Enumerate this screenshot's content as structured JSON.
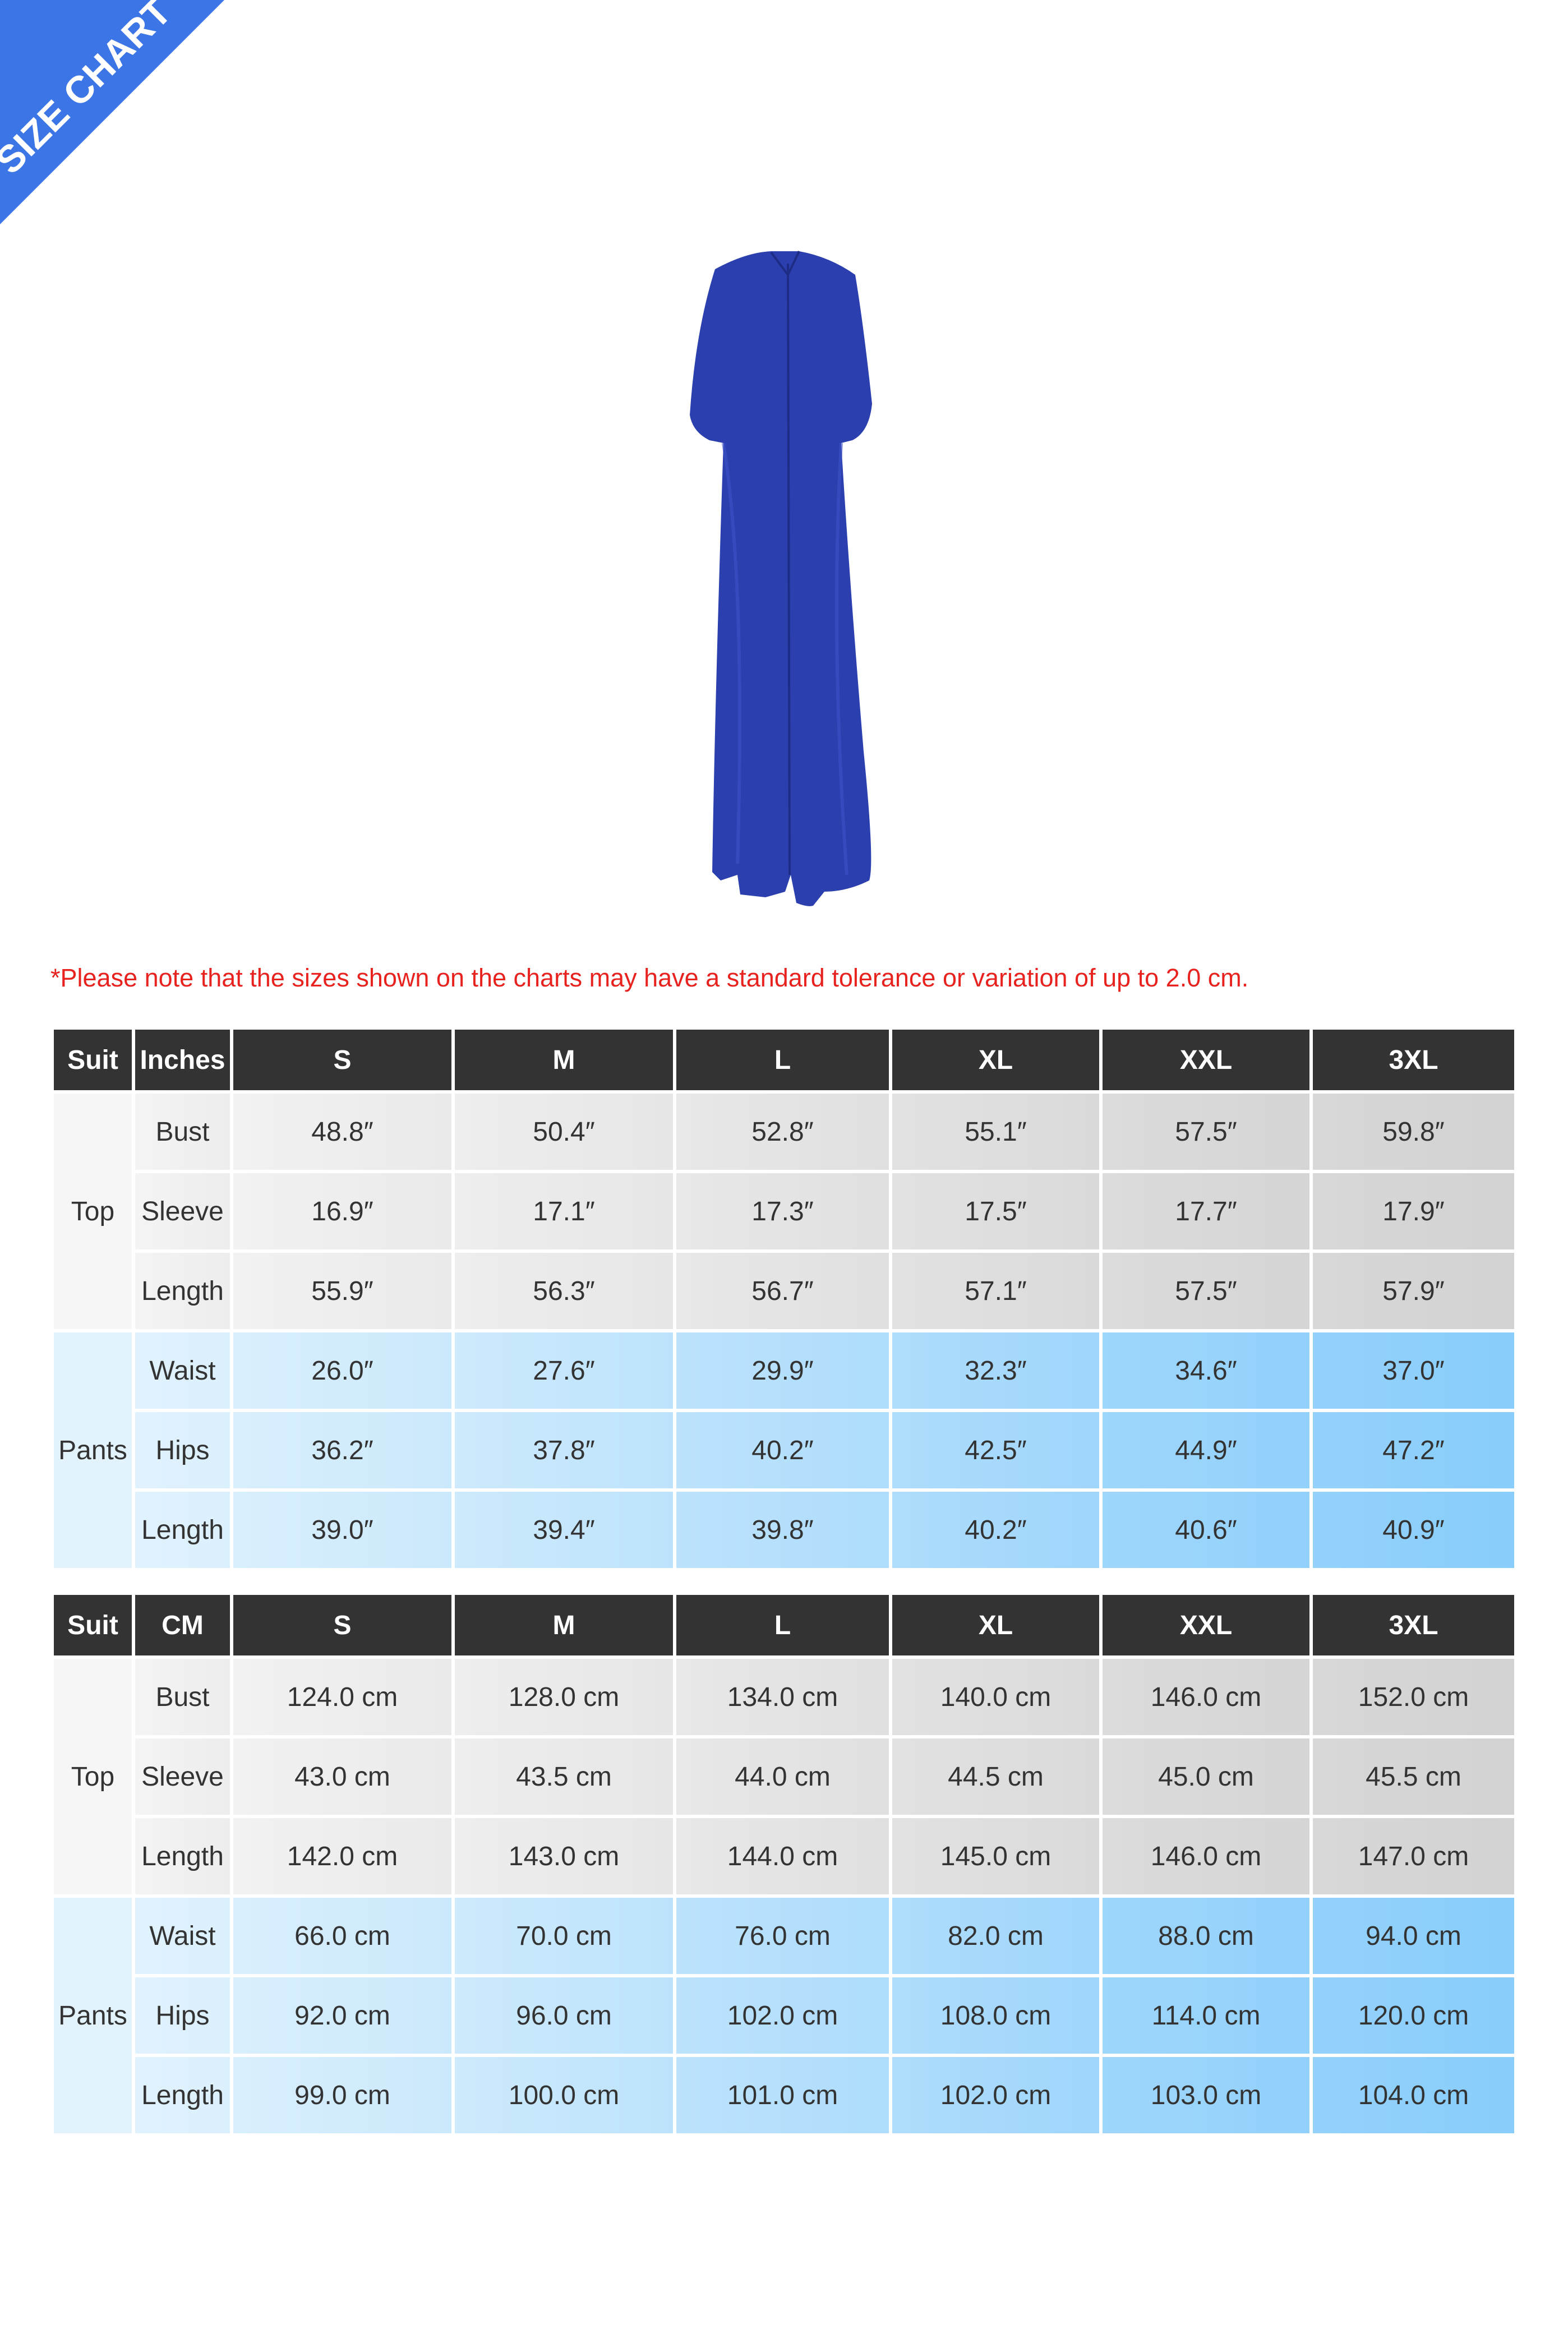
{
  "banner": {
    "label": "SIZE CHART",
    "color": "#3b75e6"
  },
  "product": {
    "color": "#2b3fae"
  },
  "note": "*Please note that the sizes shown on the charts may have a standard tolerance or variation of up to 2.0 cm.",
  "tables": [
    {
      "headers": [
        "Suit",
        "Inches",
        "S",
        "M",
        "L",
        "XL",
        "XXL",
        "3XL"
      ],
      "groups": [
        {
          "name": "Top",
          "rows": [
            {
              "label": "Bust",
              "values": [
                "48.8″",
                "50.4″",
                "52.8″",
                "55.1″",
                "57.5″",
                "59.8″"
              ]
            },
            {
              "label": "Sleeve",
              "values": [
                "16.9″",
                "17.1″",
                "17.3″",
                "17.5″",
                "17.7″",
                "17.9″"
              ]
            },
            {
              "label": "Length",
              "values": [
                "55.9″",
                "56.3″",
                "56.7″",
                "57.1″",
                "57.5″",
                "57.9″"
              ]
            }
          ]
        },
        {
          "name": "Pants",
          "rows": [
            {
              "label": "Waist",
              "values": [
                "26.0″",
                "27.6″",
                "29.9″",
                "32.3″",
                "34.6″",
                "37.0″"
              ]
            },
            {
              "label": "Hips",
              "values": [
                "36.2″",
                "37.8″",
                "40.2″",
                "42.5″",
                "44.9″",
                "47.2″"
              ]
            },
            {
              "label": "Length",
              "values": [
                "39.0″",
                "39.4″",
                "39.8″",
                "40.2″",
                "40.6″",
                "40.9″"
              ]
            }
          ]
        }
      ]
    },
    {
      "headers": [
        "Suit",
        "CM",
        "S",
        "M",
        "L",
        "XL",
        "XXL",
        "3XL"
      ],
      "groups": [
        {
          "name": "Top",
          "rows": [
            {
              "label": "Bust",
              "values": [
                "124.0 cm",
                "128.0 cm",
                "134.0 cm",
                "140.0 cm",
                "146.0 cm",
                "152.0 cm"
              ]
            },
            {
              "label": "Sleeve",
              "values": [
                "43.0 cm",
                "43.5 cm",
                "44.0 cm",
                "44.5 cm",
                "45.0 cm",
                "45.5 cm"
              ]
            },
            {
              "label": "Length",
              "values": [
                "142.0 cm",
                "143.0 cm",
                "144.0 cm",
                "145.0 cm",
                "146.0 cm",
                "147.0 cm"
              ]
            }
          ]
        },
        {
          "name": "Pants",
          "rows": [
            {
              "label": "Waist",
              "values": [
                "66.0 cm",
                "70.0 cm",
                "76.0 cm",
                "82.0 cm",
                "88.0 cm",
                "94.0 cm"
              ]
            },
            {
              "label": "Hips",
              "values": [
                "92.0 cm",
                "96.0 cm",
                "102.0 cm",
                "108.0 cm",
                "114.0 cm",
                "120.0 cm"
              ]
            },
            {
              "label": "Length",
              "values": [
                "99.0 cm",
                "100.0 cm",
                "101.0 cm",
                "102.0 cm",
                "103.0 cm",
                "104.0 cm"
              ]
            }
          ]
        }
      ]
    }
  ]
}
